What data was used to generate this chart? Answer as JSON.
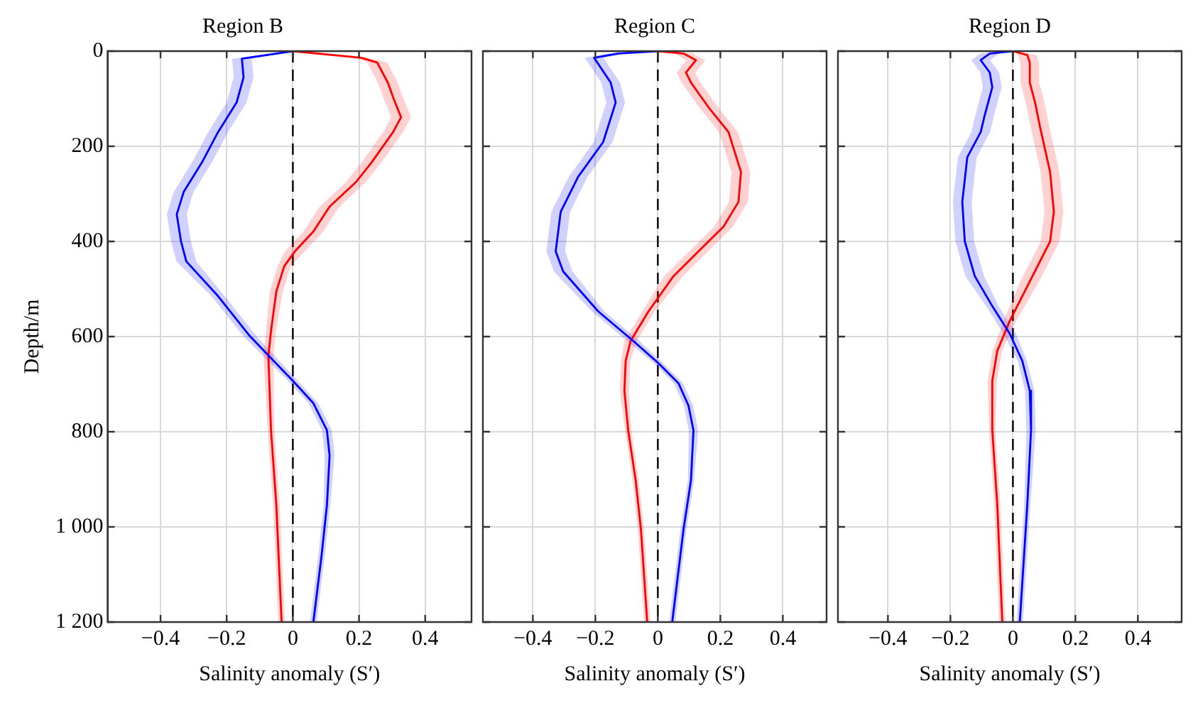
{
  "chart_data": [
    {
      "type": "line",
      "title": "Region B",
      "ylabel": "Depth/m",
      "xlabel": "Salinity anomaly (S′)",
      "orientation": "horizontal",
      "grid": true,
      "ylim": [
        1200,
        0
      ],
      "yticks": [
        0,
        200,
        400,
        600,
        800,
        {
          "value": 1000,
          "label": "1 000"
        },
        {
          "value": 1200,
          "label": "1 200"
        }
      ],
      "xlim": [
        -0.56,
        0.54
      ],
      "xticks": [
        -0.4,
        -0.2,
        0,
        0.2,
        0.4
      ],
      "ref_lines": [
        {
          "axis": "x",
          "value": 0,
          "color": "#000000",
          "line_style": "dashed"
        }
      ],
      "series": [
        {
          "color": "#0000ff",
          "x": [
            0,
            16,
            55,
            108,
            170,
            233,
            296,
            343,
            400,
            442,
            515,
            599,
            693,
            740,
            797,
            850,
            954,
            1059,
            1200
          ],
          "values": [
            0,
            -0.154,
            -0.149,
            -0.17,
            -0.226,
            -0.274,
            -0.33,
            -0.351,
            -0.338,
            -0.322,
            -0.226,
            -0.13,
            0,
            0.062,
            0.103,
            0.111,
            0.103,
            0.087,
            0.062
          ],
          "lower": [
            0,
            -0.184,
            -0.179,
            -0.2,
            -0.256,
            -0.304,
            -0.36,
            -0.381,
            -0.368,
            -0.352,
            -0.246,
            -0.15,
            -0.015,
            0.047,
            0.088,
            0.096,
            0.093,
            0.077,
            0.052
          ],
          "upper": [
            0,
            -0.124,
            -0.119,
            -0.14,
            -0.196,
            -0.244,
            -0.3,
            -0.321,
            -0.308,
            -0.292,
            -0.206,
            -0.11,
            0.015,
            0.077,
            0.118,
            0.126,
            0.113,
            0.097,
            0.072
          ]
        },
        {
          "color": "#ff0000",
          "x": [
            0,
            14,
            24,
            66,
            97,
            139,
            170,
            233,
            275,
            327,
            379,
            421,
            452,
            505,
            588,
            640,
            797,
            954,
            1200
          ],
          "values": [
            0,
            0.207,
            0.255,
            0.287,
            0.303,
            0.327,
            0.303,
            0.239,
            0.191,
            0.111,
            0.062,
            0.006,
            -0.026,
            -0.05,
            -0.066,
            -0.074,
            -0.066,
            -0.05,
            -0.034
          ],
          "lower": [
            0,
            0.187,
            0.225,
            0.257,
            0.273,
            0.297,
            0.273,
            0.209,
            0.161,
            0.081,
            0.032,
            -0.024,
            -0.046,
            -0.07,
            -0.081,
            -0.089,
            -0.076,
            -0.06,
            -0.044
          ],
          "upper": [
            0,
            0.227,
            0.285,
            0.317,
            0.333,
            0.357,
            0.333,
            0.269,
            0.221,
            0.141,
            0.092,
            0.036,
            -0.006,
            -0.03,
            -0.051,
            -0.059,
            -0.056,
            -0.04,
            -0.024
          ]
        }
      ]
    },
    {
      "type": "line",
      "title": "Region C",
      "xlabel": "Salinity anomaly (S′)",
      "orientation": "horizontal",
      "grid": true,
      "tick_labels": "x",
      "ylim": [
        1200,
        0
      ],
      "yticks": [
        0,
        200,
        400,
        600,
        800,
        1000,
        1200
      ],
      "xlim": [
        -0.56,
        0.54
      ],
      "xticks": [
        -0.4,
        -0.2,
        0,
        0.2,
        0.4
      ],
      "ref_lines": [
        {
          "axis": "x",
          "value": 0,
          "color": "#000000",
          "line_style": "dashed"
        }
      ],
      "series": [
        {
          "color": "#0000ff",
          "x": [
            0,
            5,
            14,
            66,
            108,
            191,
            264,
            338,
            421,
            463,
            547,
            609,
            656,
            698,
            745,
            797,
            902,
            1006,
            1200
          ],
          "values": [
            0,
            -0.127,
            -0.204,
            -0.151,
            -0.135,
            -0.175,
            -0.255,
            -0.311,
            -0.327,
            -0.303,
            -0.191,
            -0.079,
            0.002,
            0.066,
            0.098,
            0.114,
            0.106,
            0.082,
            0.046
          ],
          "lower": [
            0,
            -0.157,
            -0.234,
            -0.181,
            -0.165,
            -0.205,
            -0.285,
            -0.341,
            -0.357,
            -0.333,
            -0.211,
            -0.099,
            -0.013,
            0.051,
            0.083,
            0.099,
            0.096,
            0.072,
            0.036
          ],
          "upper": [
            0,
            -0.097,
            -0.174,
            -0.121,
            -0.105,
            -0.145,
            -0.225,
            -0.281,
            -0.297,
            -0.273,
            -0.171,
            -0.059,
            0.017,
            0.081,
            0.113,
            0.129,
            0.116,
            0.092,
            0.056
          ]
        },
        {
          "color": "#ff0000",
          "x": [
            0,
            5,
            19,
            45,
            66,
            118,
            170,
            254,
            317,
            369,
            421,
            473,
            547,
            609,
            651,
            714,
            797,
            902,
            1006,
            1200
          ],
          "values": [
            0,
            0.082,
            0.122,
            0.09,
            0.106,
            0.162,
            0.226,
            0.266,
            0.258,
            0.21,
            0.13,
            0.05,
            -0.03,
            -0.087,
            -0.103,
            -0.107,
            -0.095,
            -0.071,
            -0.054,
            -0.034
          ],
          "lower": [
            0,
            0.052,
            0.092,
            0.06,
            0.076,
            0.132,
            0.196,
            0.236,
            0.228,
            0.18,
            0.1,
            0.02,
            -0.05,
            -0.107,
            -0.118,
            -0.122,
            -0.105,
            -0.081,
            -0.064,
            -0.044
          ],
          "upper": [
            0,
            0.112,
            0.152,
            0.12,
            0.136,
            0.192,
            0.256,
            0.296,
            0.288,
            0.24,
            0.16,
            0.08,
            -0.01,
            -0.067,
            -0.088,
            -0.092,
            -0.085,
            -0.061,
            -0.044,
            -0.024
          ]
        }
      ]
    },
    {
      "type": "line",
      "title": "Region D",
      "xlabel": "Salinity anomaly (S′)",
      "orientation": "horizontal",
      "grid": true,
      "tick_labels": "x",
      "ylim": [
        1200,
        0
      ],
      "yticks": [
        0,
        200,
        400,
        600,
        800,
        1000,
        1200
      ],
      "xlim": [
        -0.56,
        0.54
      ],
      "xticks": [
        -0.4,
        -0.2,
        0,
        0.2,
        0.4
      ],
      "ref_lines": [
        {
          "axis": "x",
          "value": 0,
          "color": "#000000",
          "line_style": "dashed"
        }
      ],
      "series": [
        {
          "color": "#0000ff",
          "x": [
            0,
            5,
            19,
            45,
            76,
            134,
            170,
            223,
            317,
            400,
            473,
            536,
            594,
            651,
            714,
            797,
            954,
            1200
          ],
          "values": [
            0,
            -0.074,
            -0.103,
            -0.074,
            -0.066,
            -0.09,
            -0.103,
            -0.146,
            -0.162,
            -0.154,
            -0.122,
            -0.066,
            -0.01,
            0.03,
            0.054,
            0.058,
            0.046,
            0.022
          ],
          "lower": [
            0,
            -0.104,
            -0.133,
            -0.104,
            -0.096,
            -0.12,
            -0.133,
            -0.176,
            -0.192,
            -0.184,
            -0.152,
            -0.086,
            -0.03,
            0.015,
            0.039,
            0.043,
            0.036,
            0.012
          ],
          "upper": [
            0,
            -0.044,
            -0.073,
            -0.044,
            -0.036,
            -0.06,
            -0.073,
            -0.116,
            -0.132,
            -0.124,
            -0.092,
            -0.046,
            0.01,
            0.045,
            0.069,
            0.073,
            0.056,
            0.032
          ]
        },
        {
          "color": "#ff0000",
          "x": [
            0,
            8,
            24,
            66,
            108,
            160,
            254,
            338,
            400,
            484,
            567,
            630,
            693,
            797,
            954,
            1200
          ],
          "values": [
            0,
            0.046,
            0.054,
            0.054,
            0.071,
            0.087,
            0.119,
            0.131,
            0.119,
            0.054,
            -0.01,
            -0.05,
            -0.066,
            -0.066,
            -0.05,
            -0.034
          ],
          "lower": [
            0,
            0.016,
            0.024,
            0.024,
            0.041,
            0.057,
            0.089,
            0.101,
            0.089,
            0.024,
            -0.03,
            -0.065,
            -0.081,
            -0.076,
            -0.06,
            -0.044
          ],
          "upper": [
            0,
            0.076,
            0.084,
            0.084,
            0.101,
            0.117,
            0.149,
            0.161,
            0.149,
            0.084,
            0.01,
            -0.035,
            -0.051,
            -0.056,
            -0.04,
            -0.024
          ]
        }
      ]
    }
  ]
}
